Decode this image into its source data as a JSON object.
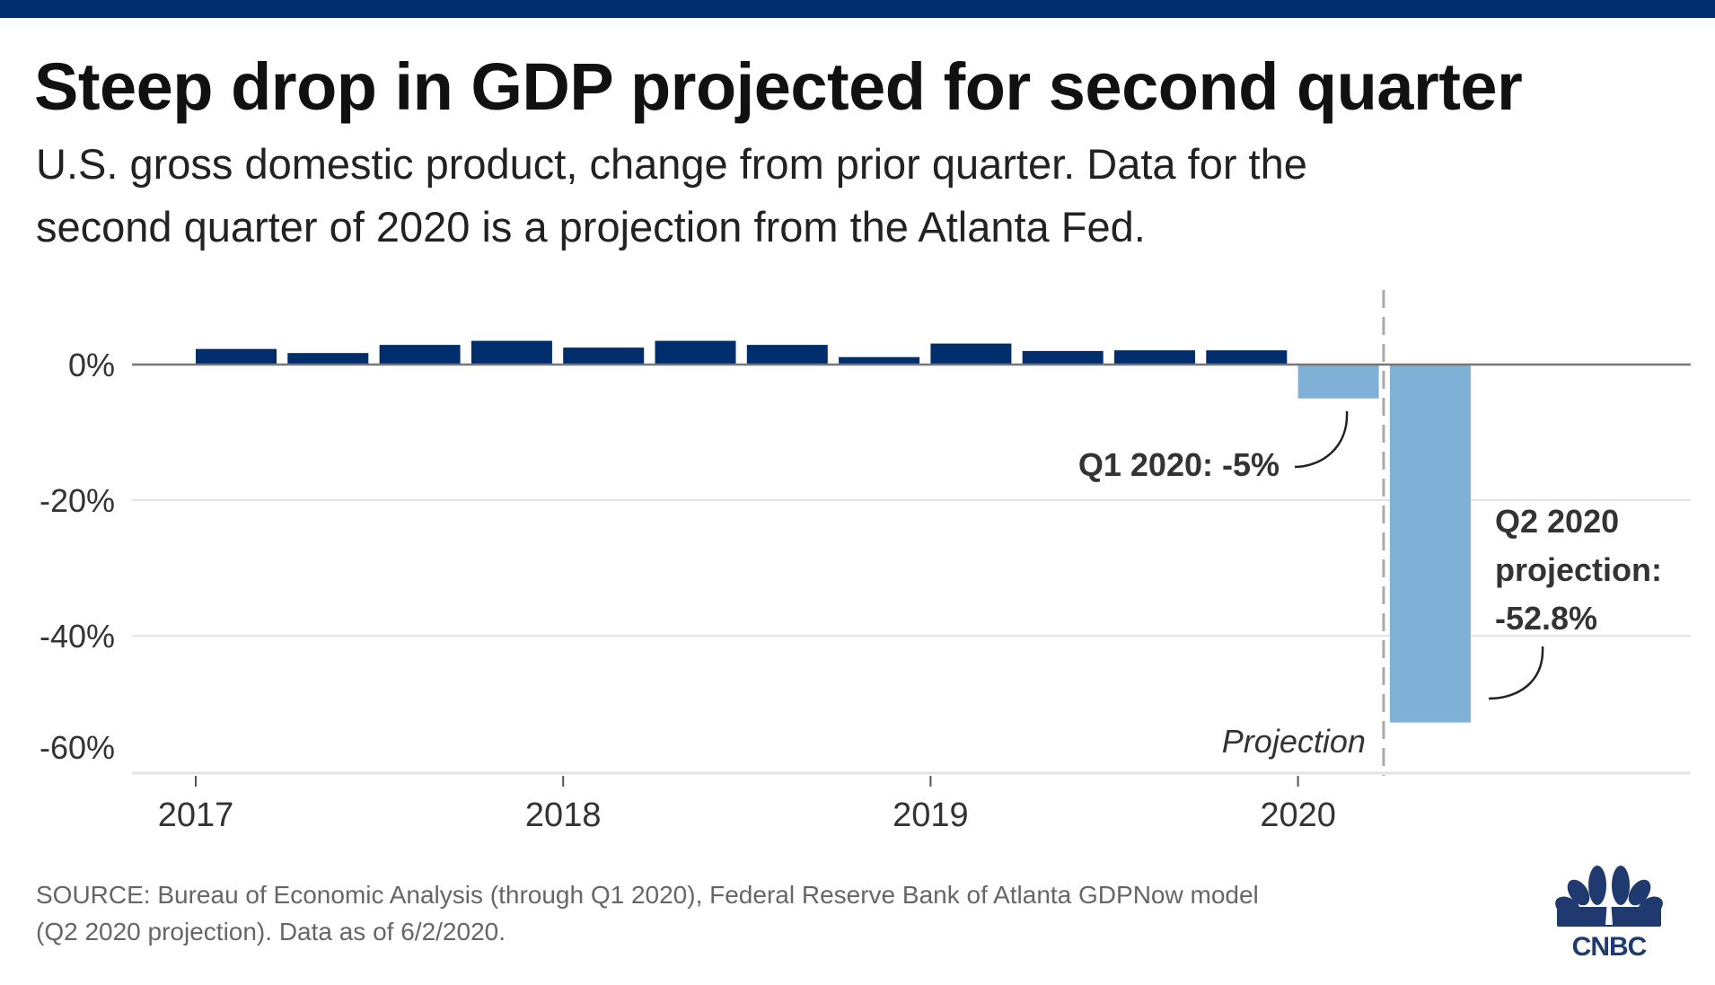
{
  "header": {
    "title": "Steep drop in GDP projected for second quarter",
    "subtitle_lines": [
      "U.S. gross domestic product, change from prior quarter. Data for the",
      "second quarter of 2020 is a projection from the Atlanta Fed."
    ]
  },
  "footer": {
    "source_lines": [
      "SOURCE: Bureau of Economic Analysis (through Q1 2020), Federal Reserve Bank of Atlanta GDPNow model",
      "(Q2 2020 projection). Data as of 6/2/2020."
    ],
    "logo_text": "CNBC",
    "logo_icon": "nbc-peacock-icon"
  },
  "colors": {
    "brand_navy": "#002d6b",
    "actual_bar": "#002d6b",
    "negative_bar": "#7fb0d6",
    "projection_line": "#aaaaaa",
    "logo": "#1e3a6e"
  },
  "chart_data": {
    "type": "bar",
    "title": "Steep drop in GDP projected for second quarter",
    "xlabel": "",
    "ylabel": "",
    "ylim": [
      -60,
      10
    ],
    "yticks": [
      0,
      -20,
      -40,
      -60
    ],
    "ytick_labels": [
      "0%",
      "-20%",
      "-40%",
      "-60%"
    ],
    "xticks": [
      "2017",
      "2018",
      "2019",
      "2020"
    ],
    "grid": true,
    "categories": [
      "Q1 2017",
      "Q2 2017",
      "Q3 2017",
      "Q4 2017",
      "Q1 2018",
      "Q2 2018",
      "Q3 2018",
      "Q4 2018",
      "Q1 2019",
      "Q2 2019",
      "Q3 2019",
      "Q4 2019",
      "Q1 2020",
      "Q2 2020"
    ],
    "values": [
      2.3,
      1.7,
      2.9,
      3.5,
      2.5,
      3.5,
      2.9,
      1.1,
      3.1,
      2.0,
      2.1,
      2.1,
      -5.0,
      -52.8
    ],
    "projected": [
      false,
      false,
      false,
      false,
      false,
      false,
      false,
      false,
      false,
      false,
      false,
      false,
      false,
      true
    ],
    "projection_label": "Projection",
    "annotations": [
      {
        "target": "Q1 2020",
        "lines": [
          "Q1 2020: -5%"
        ]
      },
      {
        "target": "Q2 2020",
        "lines": [
          "Q2 2020",
          "projection:",
          "-52.8%"
        ]
      }
    ]
  }
}
